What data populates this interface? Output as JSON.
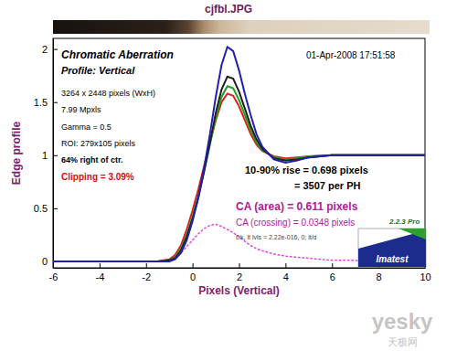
{
  "chart_data": {
    "type": "line",
    "title": "cjfbl.JPG",
    "xlabel": "Pixels (Vertical)",
    "ylabel": "Edge profile",
    "x": [
      -6,
      -5,
      -4,
      -3,
      -2,
      -1.5,
      -1,
      -0.75,
      -0.5,
      -0.25,
      0,
      0.25,
      0.5,
      0.75,
      1,
      1.25,
      1.5,
      1.75,
      2,
      2.25,
      2.5,
      2.75,
      3,
      3.5,
      4,
      4.5,
      5,
      6,
      7,
      8,
      9,
      10
    ],
    "series": [
      {
        "color": "#e040e0",
        "line_style": "dotted",
        "values": [
          0,
          0,
          0,
          0,
          0,
          0,
          0.01,
          0.03,
          0.08,
          0.14,
          0.2,
          0.26,
          0.31,
          0.34,
          0.35,
          0.33,
          0.3,
          0.27,
          0.23,
          0.19,
          0.15,
          0.12,
          0.1,
          0.07,
          0.05,
          0.04,
          0.03,
          0.01,
          0.01,
          0,
          0,
          0
        ]
      },
      {
        "color": "#e02020",
        "line_style": "solid",
        "values": [
          0,
          0,
          0,
          0,
          0,
          0,
          0.02,
          0.06,
          0.15,
          0.3,
          0.48,
          0.68,
          0.9,
          1.12,
          1.33,
          1.5,
          1.58,
          1.56,
          1.46,
          1.33,
          1.2,
          1.1,
          1.04,
          0.99,
          0.97,
          0.98,
          0.99,
          1,
          1,
          1,
          1,
          1
        ]
      },
      {
        "color": "#20a020",
        "line_style": "solid",
        "values": [
          0,
          0,
          0,
          0,
          0,
          0,
          0.01,
          0.04,
          0.12,
          0.25,
          0.42,
          0.62,
          0.85,
          1.1,
          1.35,
          1.55,
          1.65,
          1.63,
          1.52,
          1.38,
          1.24,
          1.12,
          1.05,
          0.98,
          0.96,
          0.97,
          0.99,
          1,
          1,
          1,
          1,
          1
        ]
      },
      {
        "color": "#202020",
        "line_style": "solid",
        "values": [
          0,
          0,
          0,
          0,
          0,
          0,
          0.01,
          0.03,
          0.1,
          0.23,
          0.4,
          0.6,
          0.85,
          1.12,
          1.4,
          1.62,
          1.74,
          1.72,
          1.6,
          1.44,
          1.28,
          1.15,
          1.06,
          0.97,
          0.95,
          0.96,
          0.98,
          1,
          1,
          1,
          1,
          1
        ]
      },
      {
        "color": "#2020b0",
        "line_style": "solid",
        "values": [
          0,
          0,
          0,
          0,
          0,
          0,
          0,
          0.02,
          0.08,
          0.2,
          0.38,
          0.6,
          0.88,
          1.2,
          1.55,
          1.85,
          2.02,
          1.98,
          1.8,
          1.58,
          1.38,
          1.2,
          1.08,
          0.96,
          0.93,
          0.95,
          0.98,
          1,
          1,
          1,
          1,
          1
        ]
      }
    ],
    "xlim": [
      -6,
      10
    ],
    "ylim": [
      -0.06,
      2.1
    ],
    "xticks": [
      -6,
      -4,
      -2,
      0,
      2,
      4,
      6,
      8,
      10
    ],
    "yticks": [
      0,
      0.5,
      1,
      1.5,
      2
    ],
    "grid": false,
    "annotations": {
      "heading": "Chromatic Aberration",
      "profile": "Profile: Vertical",
      "timestamp": "01-Apr-2008 17:51:58",
      "size": "3264 x 2448 pixels (WxH)",
      "mpxls": "7.99 Mpxls",
      "gamma": "Gamma = 0.5",
      "roi": "ROI: 279x105 pixels",
      "location": "64% right of ctr.",
      "clipping": "Clipping = 3.09%",
      "rise": "10-90% rise = 0.698 pixels",
      "per_ph": "= 3507 per PH",
      "ca_area": "CA (area) = 0.611 pixels",
      "ca_crossing": "CA (crossing) = 0.0348 pixels",
      "levels": "Dk, lt lvls = 2.22e-016, 0; lt/d",
      "version": "2.2.3 Pro",
      "logo": "Imatest",
      "watermark": "yesky",
      "watermark_cn": "天极网"
    }
  }
}
